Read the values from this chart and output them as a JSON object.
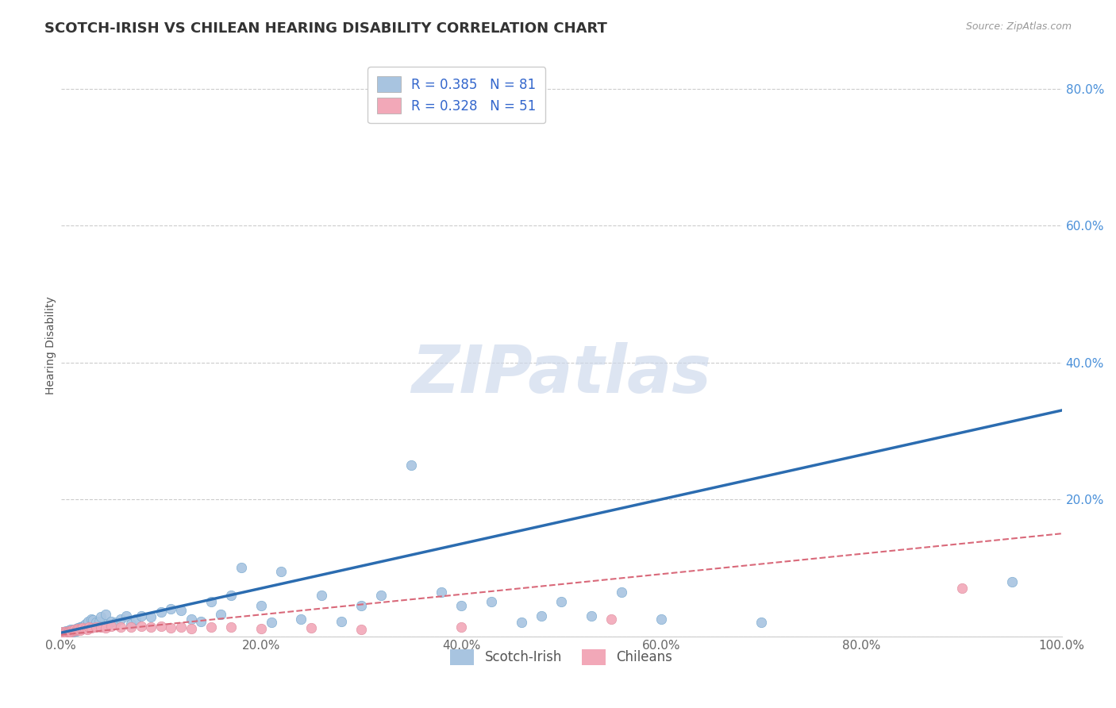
{
  "title": "SCOTCH-IRISH VS CHILEAN HEARING DISABILITY CORRELATION CHART",
  "source": "Source: ZipAtlas.com",
  "xlabel": "",
  "ylabel": "Hearing Disability",
  "xlim": [
    0.0,
    1.0
  ],
  "ylim": [
    0.0,
    0.85
  ],
  "xticks": [
    0.0,
    0.2,
    0.4,
    0.6,
    0.8,
    1.0
  ],
  "yticks": [
    0.0,
    0.2,
    0.4,
    0.6,
    0.8
  ],
  "xticklabels": [
    "0.0%",
    "20.0%",
    "40.0%",
    "60.0%",
    "80.0%",
    "100.0%"
  ],
  "yticklabels": [
    "",
    "20.0%",
    "40.0%",
    "60.0%",
    "80.0%"
  ],
  "scotch_irish_color": "#a8c4e0",
  "chilean_color": "#f2a8b8",
  "scotch_irish_line_color": "#2b6cb0",
  "chilean_line_color": "#d9697a",
  "r_scotch": 0.385,
  "n_scotch": 81,
  "r_chilean": 0.328,
  "n_chilean": 51,
  "watermark_text": "ZIPatlas",
  "background_color": "#ffffff",
  "grid_color": "#cccccc",
  "title_fontsize": 13,
  "label_fontsize": 10,
  "tick_fontsize": 11,
  "legend_fontsize": 12,
  "scotch_irish_x": [
    0.001,
    0.002,
    0.002,
    0.003,
    0.003,
    0.003,
    0.004,
    0.004,
    0.005,
    0.005,
    0.005,
    0.006,
    0.006,
    0.007,
    0.007,
    0.008,
    0.008,
    0.009,
    0.009,
    0.01,
    0.01,
    0.011,
    0.012,
    0.012,
    0.013,
    0.014,
    0.015,
    0.015,
    0.016,
    0.017,
    0.018,
    0.019,
    0.02,
    0.022,
    0.023,
    0.025,
    0.027,
    0.03,
    0.032,
    0.035,
    0.038,
    0.04,
    0.045,
    0.048,
    0.05,
    0.055,
    0.06,
    0.065,
    0.07,
    0.075,
    0.08,
    0.09,
    0.1,
    0.11,
    0.12,
    0.13,
    0.14,
    0.15,
    0.16,
    0.17,
    0.18,
    0.2,
    0.21,
    0.22,
    0.24,
    0.26,
    0.28,
    0.3,
    0.32,
    0.35,
    0.38,
    0.4,
    0.43,
    0.46,
    0.48,
    0.5,
    0.53,
    0.56,
    0.6,
    0.7,
    0.95
  ],
  "scotch_irish_y": [
    0.005,
    0.004,
    0.006,
    0.005,
    0.006,
    0.007,
    0.005,
    0.007,
    0.004,
    0.006,
    0.008,
    0.005,
    0.007,
    0.006,
    0.008,
    0.007,
    0.009,
    0.006,
    0.008,
    0.007,
    0.01,
    0.008,
    0.007,
    0.009,
    0.01,
    0.009,
    0.008,
    0.011,
    0.01,
    0.012,
    0.011,
    0.013,
    0.014,
    0.015,
    0.016,
    0.018,
    0.022,
    0.025,
    0.024,
    0.02,
    0.022,
    0.028,
    0.032,
    0.018,
    0.022,
    0.02,
    0.025,
    0.03,
    0.018,
    0.025,
    0.03,
    0.028,
    0.035,
    0.04,
    0.038,
    0.025,
    0.022,
    0.05,
    0.032,
    0.06,
    0.1,
    0.045,
    0.02,
    0.095,
    0.025,
    0.06,
    0.022,
    0.045,
    0.06,
    0.25,
    0.065,
    0.045,
    0.05,
    0.02,
    0.03,
    0.05,
    0.03,
    0.065,
    0.025,
    0.02,
    0.08
  ],
  "chilean_x": [
    0.001,
    0.002,
    0.003,
    0.003,
    0.004,
    0.004,
    0.005,
    0.005,
    0.006,
    0.007,
    0.007,
    0.008,
    0.008,
    0.009,
    0.01,
    0.01,
    0.011,
    0.012,
    0.013,
    0.014,
    0.015,
    0.016,
    0.017,
    0.018,
    0.019,
    0.02,
    0.022,
    0.024,
    0.026,
    0.028,
    0.03,
    0.035,
    0.04,
    0.045,
    0.05,
    0.06,
    0.07,
    0.08,
    0.09,
    0.1,
    0.11,
    0.12,
    0.13,
    0.15,
    0.17,
    0.2,
    0.25,
    0.3,
    0.4,
    0.55,
    0.9
  ],
  "chilean_y": [
    0.005,
    0.006,
    0.004,
    0.005,
    0.006,
    0.005,
    0.007,
    0.006,
    0.005,
    0.007,
    0.006,
    0.008,
    0.007,
    0.006,
    0.008,
    0.007,
    0.009,
    0.008,
    0.009,
    0.01,
    0.009,
    0.01,
    0.011,
    0.01,
    0.009,
    0.011,
    0.012,
    0.011,
    0.01,
    0.013,
    0.012,
    0.013,
    0.014,
    0.012,
    0.015,
    0.013,
    0.014,
    0.015,
    0.013,
    0.015,
    0.012,
    0.013,
    0.011,
    0.014,
    0.013,
    0.011,
    0.012,
    0.01,
    0.013,
    0.025,
    0.07
  ],
  "si_line_x0": 0.0,
  "si_line_y0": 0.005,
  "si_line_x1": 1.0,
  "si_line_y1": 0.33,
  "ch_line_x0": 0.0,
  "ch_line_y0": 0.002,
  "ch_line_x1": 1.0,
  "ch_line_y1": 0.15
}
